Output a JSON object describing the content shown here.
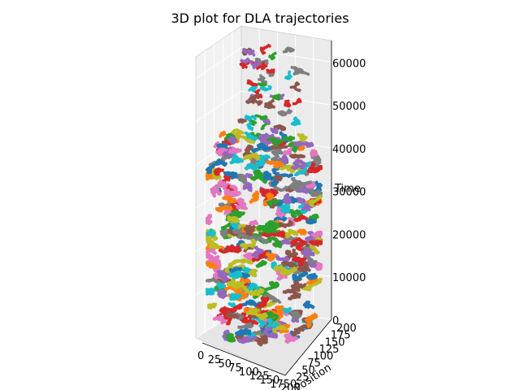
{
  "chart_data": {
    "type": "scatter",
    "title": "3D plot for DLA trajectories",
    "xlabel": "",
    "ylabel": "Position",
    "zlabel": "Time",
    "x_ticks": [
      "0",
      "25",
      "50",
      "75",
      "100",
      "125",
      "150",
      "175",
      "200"
    ],
    "y_ticks": [
      "0",
      "25",
      "50",
      "75",
      "100",
      "125",
      "150",
      "175",
      "200"
    ],
    "z_ticks": [
      "0",
      "10000",
      "20000",
      "30000",
      "40000",
      "50000",
      "60000"
    ],
    "xlim": [
      0,
      200
    ],
    "ylim": [
      0,
      200
    ],
    "zlim": [
      0,
      65000
    ],
    "grid": true,
    "legend": "none",
    "description_of_marks": "many random-walk particle trajectories stacked in time, forming a column that narrows toward the top",
    "series_colors": [
      "#1f77b4",
      "#ff7f0e",
      "#2ca02c",
      "#d62728",
      "#9467bd",
      "#8c564b",
      "#e377c2",
      "#7f7f7f",
      "#bcbd22",
      "#17becf"
    ]
  }
}
